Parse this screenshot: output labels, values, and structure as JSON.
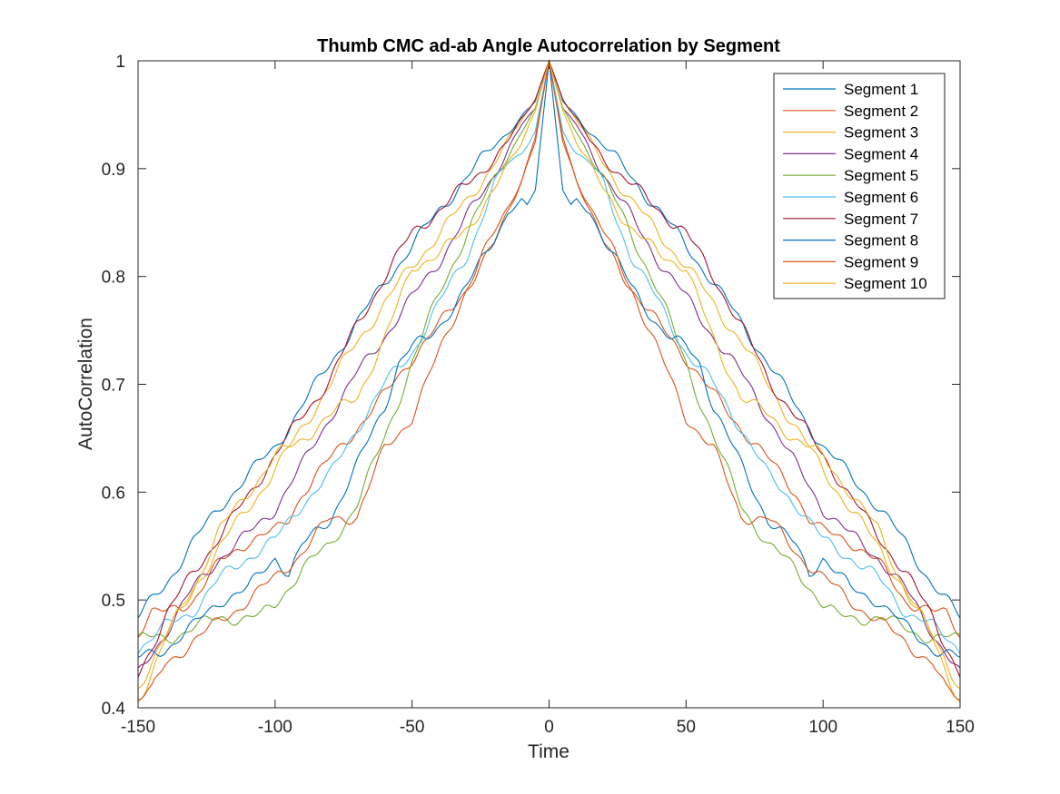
{
  "chart_data": {
    "type": "line",
    "title": "Thumb CMC ad-ab Angle Autocorrelation by Segment",
    "xlabel": "Time",
    "ylabel": "AutoCorrelation",
    "xlim": [
      -150,
      150
    ],
    "ylim": [
      0.4,
      1
    ],
    "xticks": [
      -150,
      -100,
      -50,
      0,
      50,
      100,
      150
    ],
    "yticks": [
      0.4,
      0.5,
      0.6,
      0.7,
      0.8,
      0.9,
      1
    ],
    "grid": false,
    "legend_position": "top-right",
    "series": [
      {
        "name": "Segment 1",
        "color": "#0072BD",
        "x": [
          0,
          5,
          10,
          15,
          20,
          25,
          30,
          40,
          50,
          60,
          70,
          80,
          90,
          100,
          110,
          120,
          130,
          140,
          150
        ],
        "y": [
          1,
          0.962,
          0.948,
          0.935,
          0.922,
          0.907,
          0.892,
          0.862,
          0.828,
          0.795,
          0.757,
          0.72,
          0.68,
          0.642,
          0.615,
          0.587,
          0.553,
          0.515,
          0.483
        ]
      },
      {
        "name": "Segment 2",
        "color": "#D95319",
        "x": [
          0,
          5,
          10,
          15,
          20,
          30,
          40,
          50,
          60,
          70,
          80,
          90,
          95,
          100,
          110,
          115,
          120,
          130,
          140,
          145,
          150
        ],
        "y": [
          1,
          0.93,
          0.89,
          0.86,
          0.83,
          0.79,
          0.755,
          0.725,
          0.69,
          0.66,
          0.63,
          0.6,
          0.575,
          0.563,
          0.555,
          0.545,
          0.535,
          0.5,
          0.488,
          0.487,
          0.47
        ]
      },
      {
        "name": "Segment 3",
        "color": "#EDB120",
        "x": [
          0,
          5,
          10,
          20,
          30,
          40,
          50,
          60,
          70,
          80,
          90,
          100,
          110,
          120,
          130,
          140,
          150
        ],
        "y": [
          1,
          0.965,
          0.945,
          0.905,
          0.87,
          0.84,
          0.81,
          0.775,
          0.74,
          0.7,
          0.66,
          0.62,
          0.585,
          0.55,
          0.51,
          0.465,
          0.405
        ]
      },
      {
        "name": "Segment 4",
        "color": "#7E2F8E",
        "x": [
          0,
          5,
          10,
          20,
          30,
          40,
          50,
          60,
          70,
          80,
          90,
          100,
          110,
          120,
          130,
          140,
          150
        ],
        "y": [
          1,
          0.955,
          0.94,
          0.895,
          0.855,
          0.815,
          0.78,
          0.745,
          0.71,
          0.67,
          0.625,
          0.585,
          0.56,
          0.54,
          0.51,
          0.47,
          0.43
        ]
      },
      {
        "name": "Segment 5",
        "color": "#77AC30",
        "x": [
          0,
          5,
          10,
          20,
          30,
          40,
          50,
          60,
          70,
          80,
          90,
          100,
          105,
          110,
          120,
          130,
          140,
          150
        ],
        "y": [
          1,
          0.955,
          0.935,
          0.89,
          0.84,
          0.785,
          0.72,
          0.65,
          0.59,
          0.55,
          0.53,
          0.495,
          0.485,
          0.484,
          0.483,
          0.475,
          0.463,
          0.465
        ]
      },
      {
        "name": "Segment 6",
        "color": "#4DBEEE",
        "x": [
          0,
          5,
          10,
          15,
          20,
          25,
          30,
          40,
          50,
          60,
          70,
          80,
          90,
          100,
          110,
          120,
          130,
          140,
          150
        ],
        "y": [
          1,
          0.935,
          0.915,
          0.905,
          0.885,
          0.85,
          0.82,
          0.775,
          0.73,
          0.7,
          0.66,
          0.615,
          0.59,
          0.555,
          0.54,
          0.52,
          0.49,
          0.475,
          0.455
        ]
      },
      {
        "name": "Segment 7",
        "color": "#A2142F",
        "x": [
          0,
          5,
          10,
          15,
          20,
          30,
          40,
          50,
          60,
          70,
          80,
          90,
          100,
          110,
          120,
          130,
          140,
          150
        ],
        "y": [
          1,
          0.965,
          0.945,
          0.925,
          0.91,
          0.885,
          0.862,
          0.84,
          0.8,
          0.755,
          0.705,
          0.67,
          0.635,
          0.595,
          0.56,
          0.525,
          0.485,
          0.43
        ]
      },
      {
        "name": "Segment 8",
        "color": "#0072BD",
        "x": [
          0,
          5,
          8,
          10,
          15,
          20,
          30,
          40,
          45,
          50,
          55,
          60,
          70,
          80,
          90,
          95,
          100,
          110,
          120,
          130,
          140,
          150
        ],
        "y": [
          1,
          0.88,
          0.865,
          0.87,
          0.86,
          0.835,
          0.79,
          0.755,
          0.74,
          0.735,
          0.72,
          0.68,
          0.625,
          0.575,
          0.55,
          0.525,
          0.54,
          0.51,
          0.5,
          0.475,
          0.455,
          0.445
        ]
      },
      {
        "name": "Segment 9",
        "color": "#D95319",
        "x": [
          0,
          5,
          10,
          20,
          30,
          40,
          50,
          60,
          70,
          80,
          90,
          100,
          110,
          120,
          130,
          140,
          145,
          150
        ],
        "y": [
          1,
          0.925,
          0.89,
          0.84,
          0.79,
          0.73,
          0.67,
          0.64,
          0.578,
          0.575,
          0.545,
          0.52,
          0.5,
          0.48,
          0.462,
          0.44,
          0.415,
          0.41
        ]
      },
      {
        "name": "Segment 10",
        "color": "#EDB120",
        "x": [
          0,
          5,
          10,
          20,
          30,
          40,
          50,
          60,
          70,
          80,
          90,
          100,
          110,
          120,
          130,
          140,
          150
        ],
        "y": [
          1,
          0.955,
          0.925,
          0.88,
          0.845,
          0.82,
          0.81,
          0.74,
          0.69,
          0.67,
          0.65,
          0.632,
          0.6,
          0.565,
          0.51,
          0.465,
          0.42
        ]
      }
    ]
  }
}
